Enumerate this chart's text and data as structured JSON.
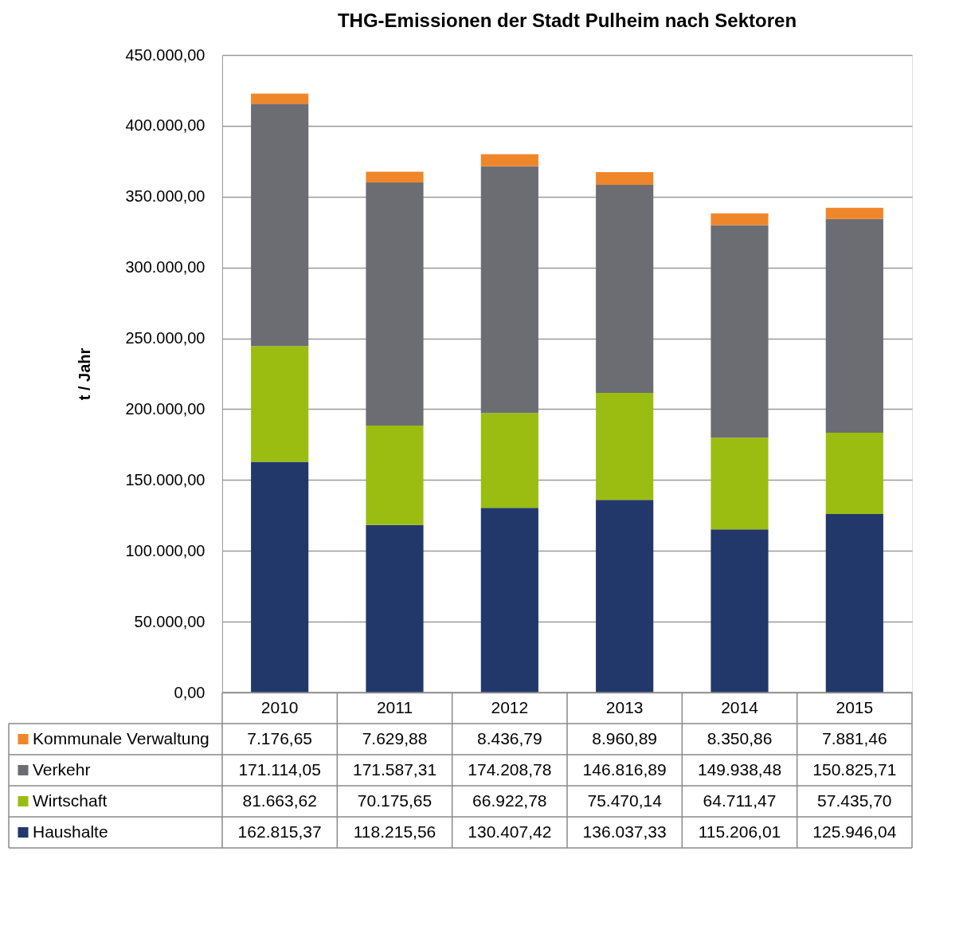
{
  "chart_data": {
    "type": "bar",
    "stacked": true,
    "title": "THG-Emissionen der Stadt Pulheim nach Sektoren",
    "ylabel": "t / Jahr",
    "categories": [
      "2010",
      "2011",
      "2012",
      "2013",
      "2014",
      "2015"
    ],
    "series": [
      {
        "name": "Haushalte",
        "color": "#22386b",
        "values": [
          162815.37,
          118215.56,
          130407.42,
          136037.33,
          115206.01,
          125946.04
        ],
        "value_labels": [
          "162.815,37",
          "118.215,56",
          "130.407,42",
          "136.037,33",
          "115.206,01",
          "125.946,04"
        ]
      },
      {
        "name": "Wirtschaft",
        "color": "#9bbd12",
        "values": [
          81663.62,
          70175.65,
          66922.78,
          75470.14,
          64711.47,
          57435.7
        ],
        "value_labels": [
          "81.663,62",
          "70.175,65",
          "66.922,78",
          "75.470,14",
          "64.711,47",
          "57.435,70"
        ]
      },
      {
        "name": "Verkehr",
        "color": "#6c6d72",
        "values": [
          171114.05,
          171587.31,
          174208.78,
          146816.89,
          149938.48,
          150825.71
        ],
        "value_labels": [
          "171.114,05",
          "171.587,31",
          "174.208,78",
          "146.816,89",
          "149.938,48",
          "150.825,71"
        ]
      },
      {
        "name": "Kommunale Verwaltung",
        "color": "#f0862a",
        "values": [
          7176.65,
          7629.88,
          8436.79,
          8960.89,
          8350.86,
          7881.46
        ],
        "value_labels": [
          "7.176,65",
          "7.629,88",
          "8.436,79",
          "8.960,89",
          "8.350,86",
          "7.881,46"
        ]
      }
    ],
    "ylim": [
      0,
      450000
    ],
    "yticks": [
      {
        "value": 0,
        "label": "0,00"
      },
      {
        "value": 50000,
        "label": "50.000,00"
      },
      {
        "value": 100000,
        "label": "100.000,00"
      },
      {
        "value": 150000,
        "label": "150.000,00"
      },
      {
        "value": 200000,
        "label": "200.000,00"
      },
      {
        "value": 250000,
        "label": "250.000,00"
      },
      {
        "value": 300000,
        "label": "300.000,00"
      },
      {
        "value": 350000,
        "label": "350.000,00"
      },
      {
        "value": 400000,
        "label": "400.000,00"
      },
      {
        "value": 450000,
        "label": "450.000,00"
      }
    ],
    "grid": "y",
    "legend": "bottom"
  }
}
